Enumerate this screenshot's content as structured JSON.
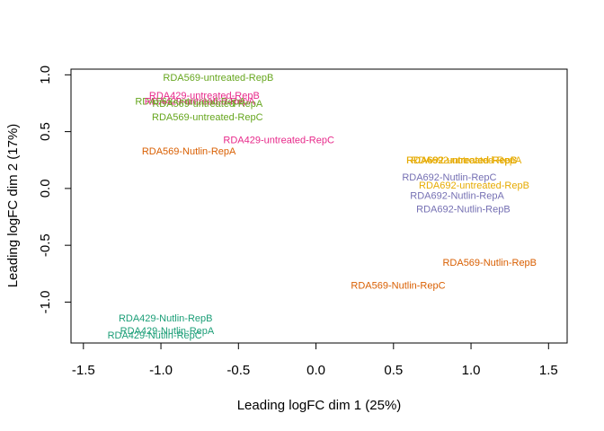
{
  "chart_data": {
    "type": "scatter",
    "title": "",
    "xlabel": "Leading logFC dim 1 (25%)",
    "ylabel": "Leading logFC dim 2 (17%)",
    "xlim": [
      -1.58,
      1.62
    ],
    "ylim": [
      -1.36,
      1.05
    ],
    "xticks": [
      -1.5,
      -1.0,
      -0.5,
      0.0,
      0.5,
      1.0,
      1.5
    ],
    "xtick_labels": [
      "-1.5",
      "-1.0",
      "-0.5",
      "0.0",
      "0.5",
      "1.0",
      "1.5"
    ],
    "yticks": [
      -1.0,
      -0.5,
      0.0,
      0.5,
      1.0
    ],
    "ytick_labels": [
      "-1.0",
      "-0.5",
      "0.0",
      "0.5",
      "1.0"
    ],
    "grid": false,
    "points": [
      {
        "label": "RDA569-untreated-RepB",
        "x": -0.63,
        "y": 0.98,
        "color": "#66a61e"
      },
      {
        "label": "RDA429-untreated-RepB",
        "x": -0.72,
        "y": 0.82,
        "color": "#e7298a"
      },
      {
        "label": "RDA569-untreated-RepA",
        "x": -0.81,
        "y": 0.77,
        "color": "#66a61e"
      },
      {
        "label": "RDA429-untreated-RepA",
        "x": -0.75,
        "y": 0.77,
        "color": "#e7298a"
      },
      {
        "label": "RDA569-untreated-RepA",
        "x": -0.7,
        "y": 0.75,
        "color": "#66a61e"
      },
      {
        "label": "RDA569-untreated-RepC",
        "x": -0.7,
        "y": 0.63,
        "color": "#66a61e"
      },
      {
        "label": "RDA429-untreated-RepC",
        "x": -0.24,
        "y": 0.43,
        "color": "#e7298a"
      },
      {
        "label": "RDA569-Nutlin-RepA",
        "x": -0.82,
        "y": 0.33,
        "color": "#d95f02"
      },
      {
        "label": "RDA692-untreated-RepB",
        "x": 0.94,
        "y": 0.25,
        "color": "#e6ab02"
      },
      {
        "label": "RDA692-untreated-RepC",
        "x": 0.94,
        "y": 0.25,
        "color": "#e6ab02"
      },
      {
        "label": "RDA692-untreated-RepA",
        "x": 0.97,
        "y": 0.25,
        "color": "#e6ab02"
      },
      {
        "label": "RDA692-Nutlin-RepC",
        "x": 0.86,
        "y": 0.1,
        "color": "#7570b3"
      },
      {
        "label": "RDA692-untreated-RepB",
        "x": 1.02,
        "y": 0.03,
        "color": "#e6ab02"
      },
      {
        "label": "RDA692-Nutlin-RepA",
        "x": 0.91,
        "y": -0.06,
        "color": "#7570b3"
      },
      {
        "label": "RDA692-Nutlin-RepB",
        "x": 0.95,
        "y": -0.18,
        "color": "#7570b3"
      },
      {
        "label": "RDA569-Nutlin-RepB",
        "x": 1.12,
        "y": -0.65,
        "color": "#d95f02"
      },
      {
        "label": "RDA569-Nutlin-RepC",
        "x": 0.53,
        "y": -0.85,
        "color": "#d95f02"
      },
      {
        "label": "RDA429-Nutlin-RepB",
        "x": -0.97,
        "y": -1.14,
        "color": "#1b9e77"
      },
      {
        "label": "RDA429-Nutlin-RepA",
        "x": -0.96,
        "y": -1.25,
        "color": "#1b9e77"
      },
      {
        "label": "RDA429-Nutlin-RepC",
        "x": -1.04,
        "y": -1.29,
        "color": "#1b9e77"
      }
    ]
  }
}
